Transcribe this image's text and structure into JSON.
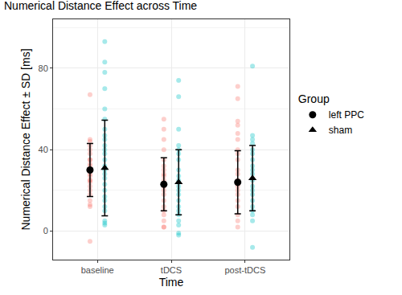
{
  "chart_data": {
    "type": "scatter",
    "title": "Numerical Distance Effect across Time",
    "x_label": "Time",
    "y_label": "Numerical Distance Effect ± SD [ms]",
    "legend_title": "Group",
    "legend": "right",
    "grid": true,
    "categories": [
      "baseline",
      "tDCS",
      "post-tDCS"
    ],
    "ylim": [
      -14,
      104
    ],
    "yticks": [
      0,
      40,
      80
    ],
    "series": [
      {
        "name": "left PPC",
        "marker": "circle",
        "color": "#F8766D",
        "values": [
          30,
          23,
          24
        ],
        "error": [
          13,
          13,
          15.5
        ],
        "points": [
          [
            67,
            -5,
            45,
            44,
            42,
            40,
            38,
            35,
            33,
            32,
            30,
            28,
            27,
            25,
            24,
            22,
            20,
            18,
            15,
            13,
            12,
            25,
            35
          ],
          [
            55,
            50,
            45,
            40,
            35,
            32,
            30,
            28,
            25,
            22,
            20,
            18,
            15,
            12,
            10,
            8,
            5,
            2,
            2,
            27
          ],
          [
            71,
            65,
            54,
            52,
            48,
            45,
            40,
            38,
            35,
            30,
            28,
            25,
            22,
            20,
            18,
            15,
            12,
            8,
            5,
            2,
            23
          ]
        ]
      },
      {
        "name": "sham",
        "marker": "triangle",
        "color": "#00BFC4",
        "values": [
          31,
          24,
          26
        ],
        "error": [
          23.5,
          16,
          16
        ],
        "points": [
          [
            93,
            83,
            78,
            70,
            60,
            55,
            50,
            47,
            45,
            42,
            40,
            38,
            35,
            32,
            30,
            28,
            26,
            23,
            20,
            17,
            15,
            12,
            10,
            5,
            3,
            4
          ],
          [
            74,
            66,
            50,
            42,
            40,
            38,
            35,
            30,
            27,
            25,
            22,
            20,
            18,
            15,
            12,
            10,
            8,
            5,
            -1,
            -2,
            3
          ],
          [
            81,
            47,
            45,
            43,
            40,
            38,
            35,
            32,
            30,
            28,
            25,
            22,
            20,
            18,
            15,
            12,
            10,
            8,
            5,
            -8
          ]
        ]
      }
    ]
  }
}
